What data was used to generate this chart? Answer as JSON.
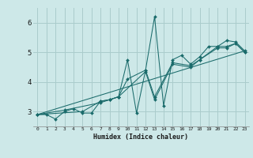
{
  "xlabel": "Humidex (Indice chaleur)",
  "ylabel": "",
  "bg_color": "#cde8e8",
  "grid_color": "#aacccc",
  "line_color": "#1a6b6b",
  "xlim": [
    -0.5,
    23.5
  ],
  "ylim": [
    2.5,
    6.5
  ],
  "yticks": [
    3,
    4,
    5,
    6
  ],
  "xticks": [
    0,
    1,
    2,
    3,
    4,
    5,
    6,
    7,
    8,
    9,
    10,
    11,
    12,
    13,
    14,
    15,
    16,
    17,
    18,
    19,
    20,
    21,
    22,
    23
  ],
  "lines": [
    {
      "x": [
        0,
        1,
        2,
        3,
        4,
        5,
        6,
        7,
        8,
        9,
        10,
        11,
        12,
        13,
        14,
        15,
        16,
        17,
        18,
        19,
        20,
        21,
        22,
        23
      ],
      "y": [
        2.9,
        2.9,
        2.75,
        3.0,
        3.1,
        2.95,
        2.95,
        3.35,
        3.4,
        3.5,
        4.75,
        2.95,
        4.4,
        6.2,
        3.2,
        4.75,
        4.9,
        4.6,
        4.85,
        5.2,
        5.2,
        5.4,
        5.35,
        5.05
      ]
    },
    {
      "x": [
        0,
        3,
        7,
        8,
        9,
        10,
        12,
        13,
        15,
        17,
        18,
        20,
        21,
        22,
        23
      ],
      "y": [
        2.9,
        3.05,
        3.3,
        3.4,
        3.5,
        4.1,
        4.4,
        3.5,
        4.65,
        4.55,
        4.75,
        5.2,
        5.2,
        5.3,
        5.0
      ]
    },
    {
      "x": [
        0,
        5,
        7,
        8,
        9,
        12,
        13,
        15,
        17,
        18,
        20,
        21,
        22,
        23
      ],
      "y": [
        2.9,
        3.0,
        3.35,
        3.4,
        3.5,
        4.35,
        3.4,
        4.6,
        4.5,
        4.75,
        5.15,
        5.15,
        5.3,
        5.0
      ]
    },
    {
      "x": [
        0,
        23
      ],
      "y": [
        2.9,
        5.05
      ]
    }
  ]
}
